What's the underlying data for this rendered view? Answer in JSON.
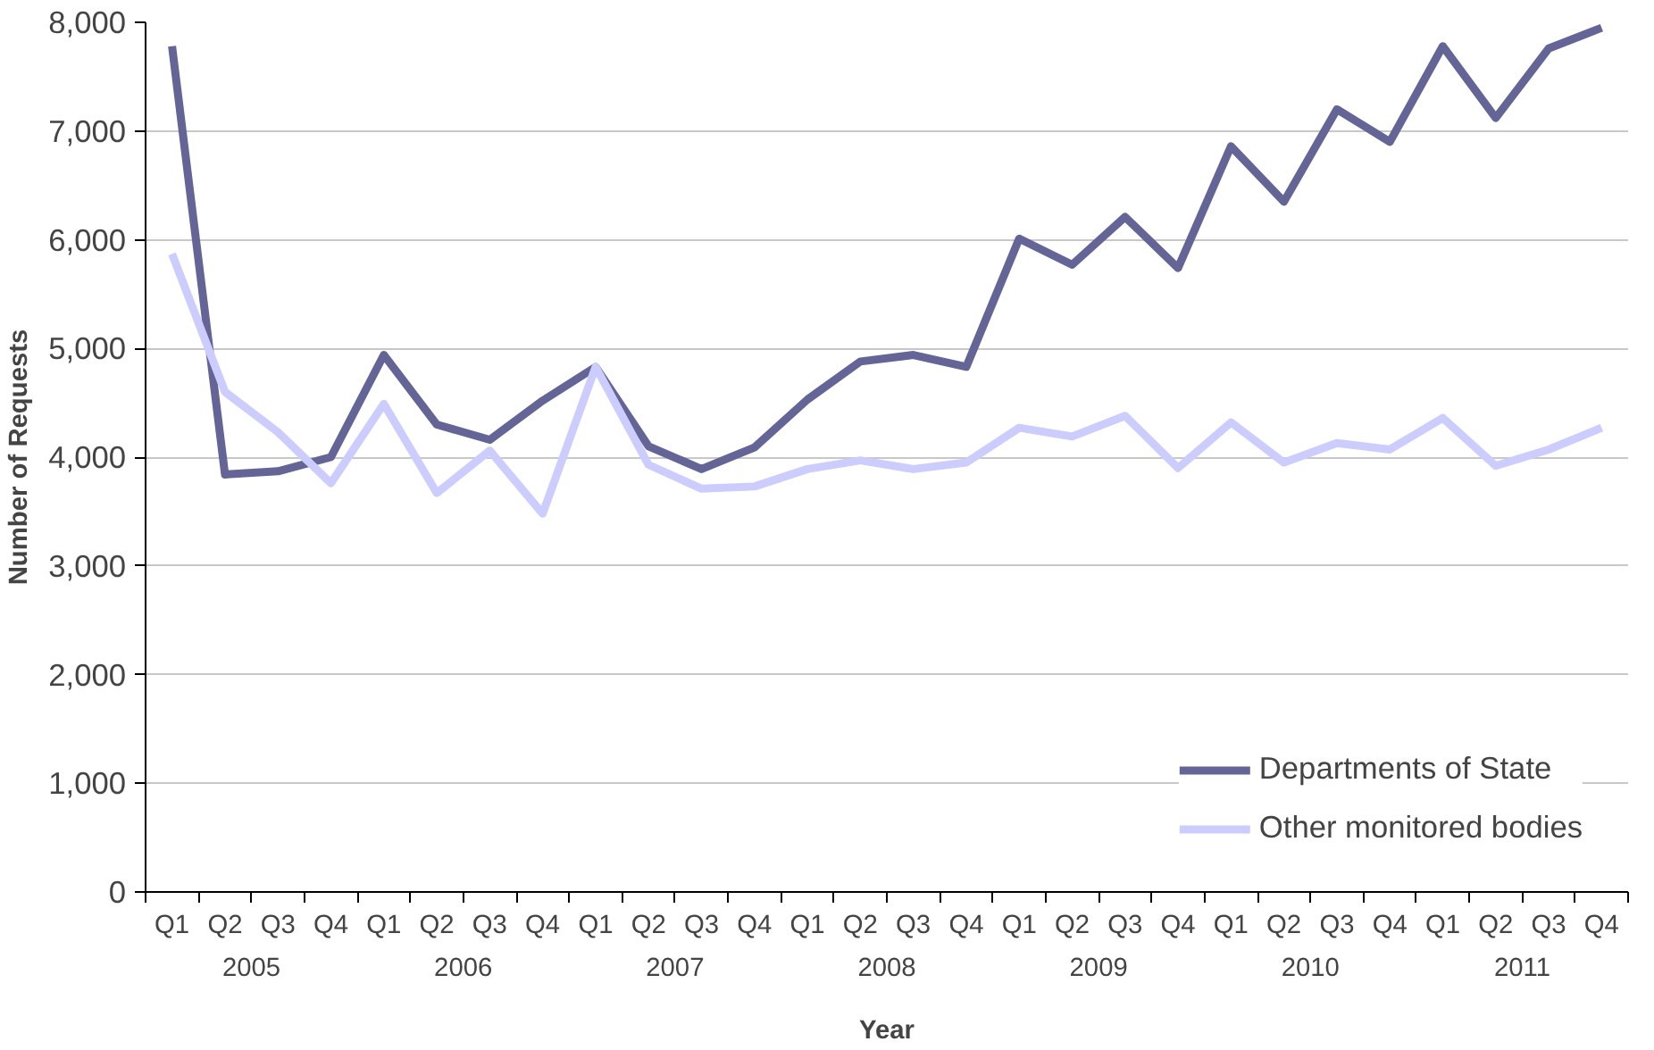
{
  "chart_data": {
    "type": "line",
    "xlabel": "Year",
    "ylabel": "Number of Requests",
    "categories": [
      "Q1",
      "Q2",
      "Q3",
      "Q4",
      "Q1",
      "Q2",
      "Q3",
      "Q4",
      "Q1",
      "Q2",
      "Q3",
      "Q4",
      "Q1",
      "Q2",
      "Q3",
      "Q4",
      "Q1",
      "Q2",
      "Q3",
      "Q4",
      "Q1",
      "Q2",
      "Q3",
      "Q4",
      "Q1",
      "Q2",
      "Q3",
      "Q4"
    ],
    "annotations": [
      "2005",
      "2006",
      "2007",
      "2008",
      "2009",
      "2010",
      "2011"
    ],
    "series": [
      {
        "name": "Departments of State",
        "color": "#646496",
        "values": [
          7780,
          3840,
          3870,
          4000,
          4940,
          4300,
          4160,
          4520,
          4830,
          4100,
          3890,
          4090,
          4530,
          4880,
          4940,
          4830,
          6010,
          5770,
          6210,
          5740,
          6860,
          6350,
          7200,
          6900,
          7780,
          7120,
          7760,
          7950
        ]
      },
      {
        "name": "Other monitored bodies",
        "color": "#ccccff",
        "values": [
          5870,
          4600,
          4230,
          3760,
          4490,
          3670,
          4060,
          3480,
          4830,
          3930,
          3710,
          3730,
          3890,
          3970,
          3890,
          3950,
          4270,
          4190,
          4380,
          3900,
          4320,
          3950,
          4130,
          4070,
          4360,
          3920,
          4070,
          4270
        ]
      }
    ],
    "ylim": [
      0,
      8000
    ],
    "yticks": [
      0,
      {
        "value": 1000,
        "label": "1,000"
      },
      {
        "value": 2000,
        "label": "2,000"
      },
      {
        "value": 3000,
        "label": "3,000"
      },
      {
        "value": 4000,
        "label": "4,000"
      },
      {
        "value": 5000,
        "label": "5,000"
      },
      {
        "value": 6000,
        "label": "6,000"
      },
      {
        "value": 7000,
        "label": "7,000"
      },
      {
        "value": 8000,
        "label": "8,000"
      }
    ],
    "grid": "y",
    "legend": "bottom right",
    "marker": "none",
    "line_style": "solid"
  }
}
